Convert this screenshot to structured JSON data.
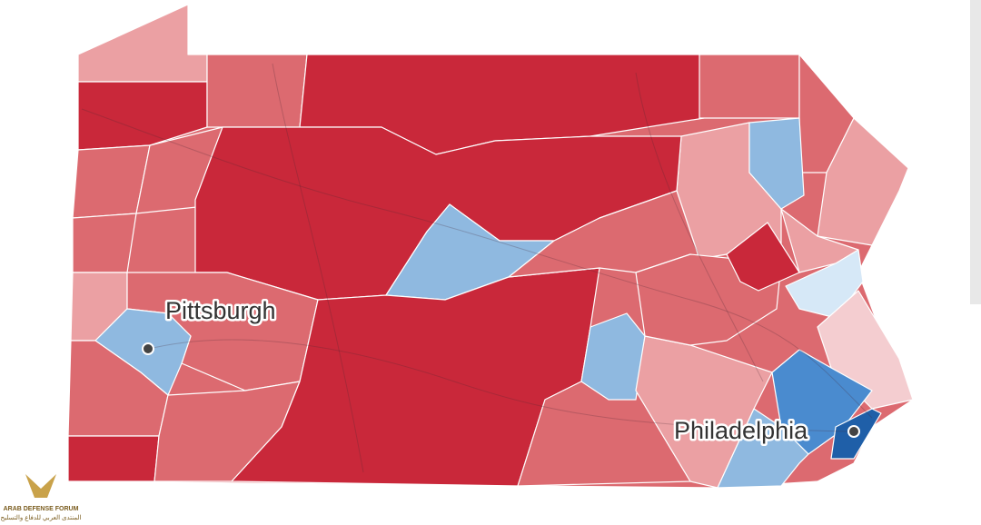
{
  "map": {
    "cities": [
      {
        "label": "Pittsburgh"
      },
      {
        "label": "Philadelphia"
      }
    ]
  },
  "watermark": {
    "name": "ARAB DEFENSE FORUM",
    "subtitle": "المنتدى العربي للدفاع والتسليح"
  }
}
